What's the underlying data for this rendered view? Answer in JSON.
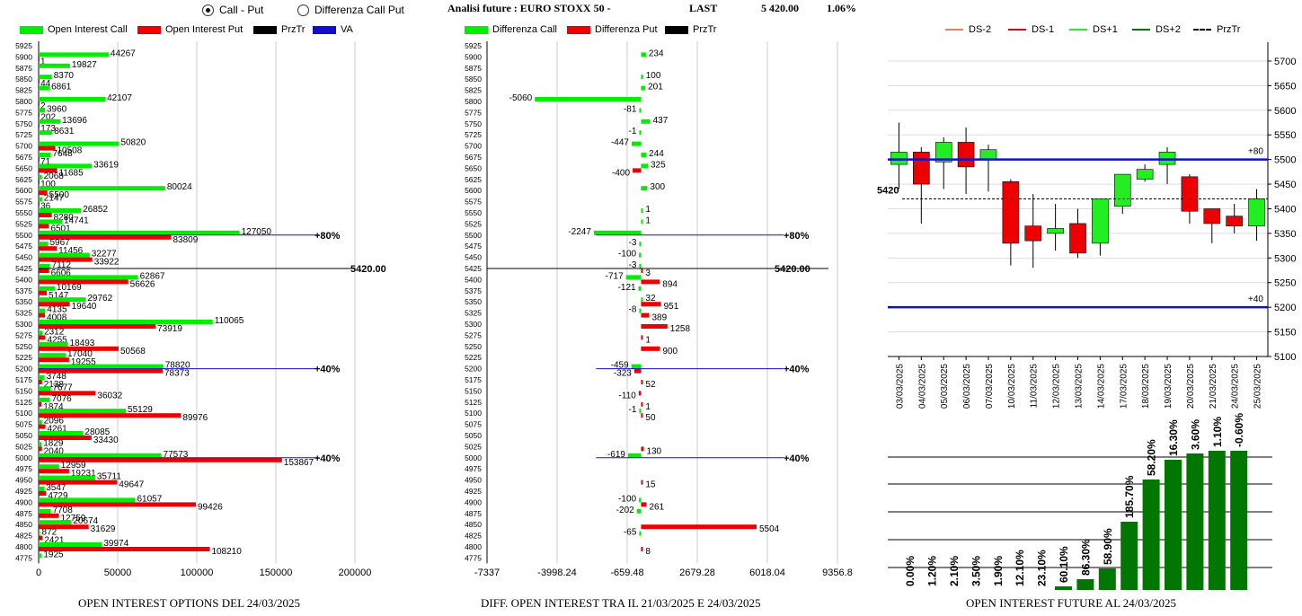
{
  "header": {
    "radio_call_put": "Call - Put",
    "radio_diff": "Differenza Call Put",
    "analysis_label": "Analisi future : EURO STOXX 50 -",
    "last_label": "LAST",
    "last_value": "5 420.00",
    "last_change": "1.06%"
  },
  "legend1": {
    "oi_call": "Open Interest Call",
    "oi_put": "Open Interest Put",
    "prztr": "PrzTr",
    "va": "VA"
  },
  "legend2": {
    "diff_call": "Differenza Call",
    "diff_put": "Differenza Put",
    "prztr": "PrzTr"
  },
  "legend3": {
    "ds_m2": "DS-2",
    "ds_m1": "DS-1",
    "ds_p1": "DS+1",
    "ds_p2": "DS+2",
    "prztr": "PrzTr"
  },
  "titles": {
    "chart1": "OPEN INTEREST OPTIONS DEL 24/03/2025",
    "chart2": "DIFF. OPEN INTEREST TRA IL 21/03/2025 E 24/03/2025",
    "chart3": "OPEN INTEREST FUTURE AL 24/03/2025"
  },
  "colors": {
    "call": "#00ee00",
    "put": "#ee0000",
    "va": "#1010cc",
    "dark_green": "#007700",
    "candle_up": "#22ee22",
    "candle_down": "#ee0000"
  },
  "chart_data": [
    {
      "type": "bar",
      "orientation": "horizontal",
      "strikes": [
        5925,
        5900,
        5875,
        5850,
        5825,
        5800,
        5775,
        5750,
        5725,
        5700,
        5675,
        5650,
        5625,
        5600,
        5575,
        5550,
        5525,
        5500,
        5475,
        5450,
        5425,
        5400,
        5375,
        5350,
        5325,
        5300,
        5275,
        5250,
        5225,
        5200,
        5175,
        5150,
        5125,
        5100,
        5075,
        5050,
        5025,
        5000,
        4975,
        4950,
        4925,
        4900,
        4875,
        4850,
        4825,
        4800,
        4775
      ],
      "series": [
        {
          "name": "Open Interest Call",
          "values": [
            null,
            44267,
            19827,
            8370,
            6861,
            42107,
            3960,
            13696,
            8631,
            50820,
            7648,
            33619,
            2068,
            80024,
            2147,
            26852,
            14741,
            127050,
            5967,
            32277,
            7112,
            62867,
            10169,
            29762,
            4135,
            110065,
            2312,
            18493,
            17040,
            78820,
            3748,
            7677,
            7076,
            55129,
            2096,
            28085,
            1829,
            77573,
            12959,
            35711,
            3547,
            61057,
            7708,
            20674,
            872,
            39974,
            1925
          ]
        },
        {
          "name": "Open Interest Put",
          "values": [
            null,
            1,
            null,
            44,
            null,
            2,
            202,
            173,
            null,
            10508,
            71,
            11685,
            100,
            5500,
            36,
            8280,
            6501,
            83809,
            11456,
            33922,
            6606,
            56626,
            5147,
            19640,
            4008,
            73919,
            4255,
            50568,
            19255,
            78373,
            2138,
            36032,
            1874,
            89976,
            4261,
            33430,
            2040,
            153867,
            19231,
            49647,
            4729,
            99426,
            12759,
            31629,
            2421,
            108210,
            null
          ]
        }
      ],
      "prztr_strike": 5425,
      "prztr_label": "5420.00",
      "va_lines": [
        {
          "strike": 5500,
          "label": "80%"
        },
        {
          "strike": 5200,
          "label": "40%"
        },
        {
          "strike": 5000,
          "label": "40%"
        }
      ],
      "x_ticks": [
        "0",
        "50000",
        "100000",
        "150000",
        "200000"
      ],
      "xlim": [
        0,
        200000
      ]
    },
    {
      "type": "bar",
      "orientation": "horizontal",
      "strikes": [
        5925,
        5900,
        5875,
        5850,
        5825,
        5800,
        5775,
        5750,
        5725,
        5700,
        5675,
        5650,
        5625,
        5600,
        5575,
        5550,
        5525,
        5500,
        5475,
        5450,
        5425,
        5400,
        5375,
        5350,
        5325,
        5300,
        5275,
        5250,
        5225,
        5200,
        5175,
        5150,
        5125,
        5100,
        5075,
        5050,
        5025,
        5000,
        4975,
        4950,
        4925,
        4900,
        4875,
        4850,
        4825,
        4800,
        4775
      ],
      "series": [
        {
          "name": "Differenza Call",
          "values": [
            null,
            234,
            null,
            100,
            201,
            -5060,
            -81,
            437,
            -1,
            -447,
            244,
            325,
            null,
            300,
            null,
            1,
            1,
            -2247,
            -3,
            -100,
            -3,
            -717,
            -121,
            32,
            -8,
            null,
            null,
            null,
            null,
            -459,
            null,
            null,
            null,
            -1,
            null,
            null,
            null,
            -619,
            null,
            null,
            null,
            -100,
            -202,
            null,
            -65,
            null,
            null
          ]
        },
        {
          "name": "Differenza Put",
          "values": [
            null,
            null,
            null,
            null,
            null,
            null,
            null,
            null,
            null,
            null,
            null,
            -400,
            null,
            null,
            null,
            null,
            null,
            null,
            null,
            null,
            3,
            894,
            null,
            951,
            389,
            1258,
            1,
            900,
            null,
            -323,
            52,
            -110,
            1,
            50,
            null,
            null,
            130,
            null,
            null,
            15,
            null,
            261,
            null,
            5504,
            null,
            8,
            null
          ]
        }
      ],
      "prztr_strike": 5425,
      "prztr_label": "5420.00",
      "va_lines": [
        {
          "strike": 5500,
          "label": "80%"
        },
        {
          "strike": 5200,
          "label": "40%"
        },
        {
          "strike": 5000,
          "label": "40%"
        }
      ],
      "x_ticks": [
        "-7337",
        "-3998.24",
        "-659.48",
        "2679.28",
        "6018.04",
        "9356.8"
      ],
      "xlim": [
        -7337,
        9356.8
      ]
    },
    {
      "type": "candlestick",
      "dates": [
        "03/03/2025",
        "04/03/2025",
        "05/03/2025",
        "06/03/2025",
        "07/03/2025",
        "10/03/2025",
        "11/03/2025",
        "12/03/2025",
        "13/03/2025",
        "14/03/2025",
        "17/03/2025",
        "18/03/2025",
        "19/03/2025",
        "20/03/2025",
        "21/03/2025",
        "24/03/2025",
        "25/03/2025"
      ],
      "ohlc": [
        [
          5490,
          5575,
          5440,
          5515
        ],
        [
          5515,
          5525,
          5370,
          5450
        ],
        [
          5495,
          5545,
          5440,
          5535
        ],
        [
          5535,
          5565,
          5430,
          5485
        ],
        [
          5500,
          5530,
          5435,
          5520
        ],
        [
          5455,
          5460,
          5285,
          5330
        ],
        [
          5365,
          5430,
          5280,
          5335
        ],
        [
          5350,
          5410,
          5315,
          5360
        ],
        [
          5370,
          5400,
          5300,
          5310
        ],
        [
          5330,
          5420,
          5305,
          5420
        ],
        [
          5405,
          5470,
          5390,
          5470
        ],
        [
          5460,
          5490,
          5455,
          5480
        ],
        [
          5490,
          5525,
          5450,
          5515
        ],
        [
          5465,
          5470,
          5370,
          5395
        ],
        [
          5400,
          5400,
          5330,
          5370
        ],
        [
          5385,
          5410,
          5350,
          5365
        ],
        [
          5365,
          5440,
          5335,
          5420
        ]
      ],
      "y_ticks": [
        5100,
        5150,
        5200,
        5250,
        5300,
        5350,
        5400,
        5450,
        5500,
        5550,
        5600,
        5650,
        5700
      ],
      "ylim": [
        5100,
        5720
      ],
      "prztr": 5420,
      "prztr_label": "5420",
      "ds_lines": [
        {
          "value": 5500,
          "label": "+80"
        },
        {
          "value": 5200,
          "label": "+40"
        }
      ]
    },
    {
      "type": "bar",
      "values": [
        0.0,
        1.2,
        2.1,
        3.5,
        1.9,
        12.1,
        23.1,
        60.1,
        86.3,
        58.9,
        185.7,
        58.2,
        16.3,
        3.6,
        1.1,
        -0.6
      ],
      "labels": [
        "0.00%",
        "1.20%",
        "2.10%",
        "3.50%",
        "1.90%",
        "12.10%",
        "23.10%",
        "60.10%",
        "86.30%",
        "58.90%",
        "185.70%",
        "58.20%",
        "16.30%",
        "3.60%",
        "1.10%",
        "-0.60%"
      ],
      "heights": [
        0,
        0,
        0,
        0,
        0,
        0,
        0,
        4,
        12,
        24,
        76,
        123,
        145,
        152,
        155,
        155
      ]
    }
  ]
}
